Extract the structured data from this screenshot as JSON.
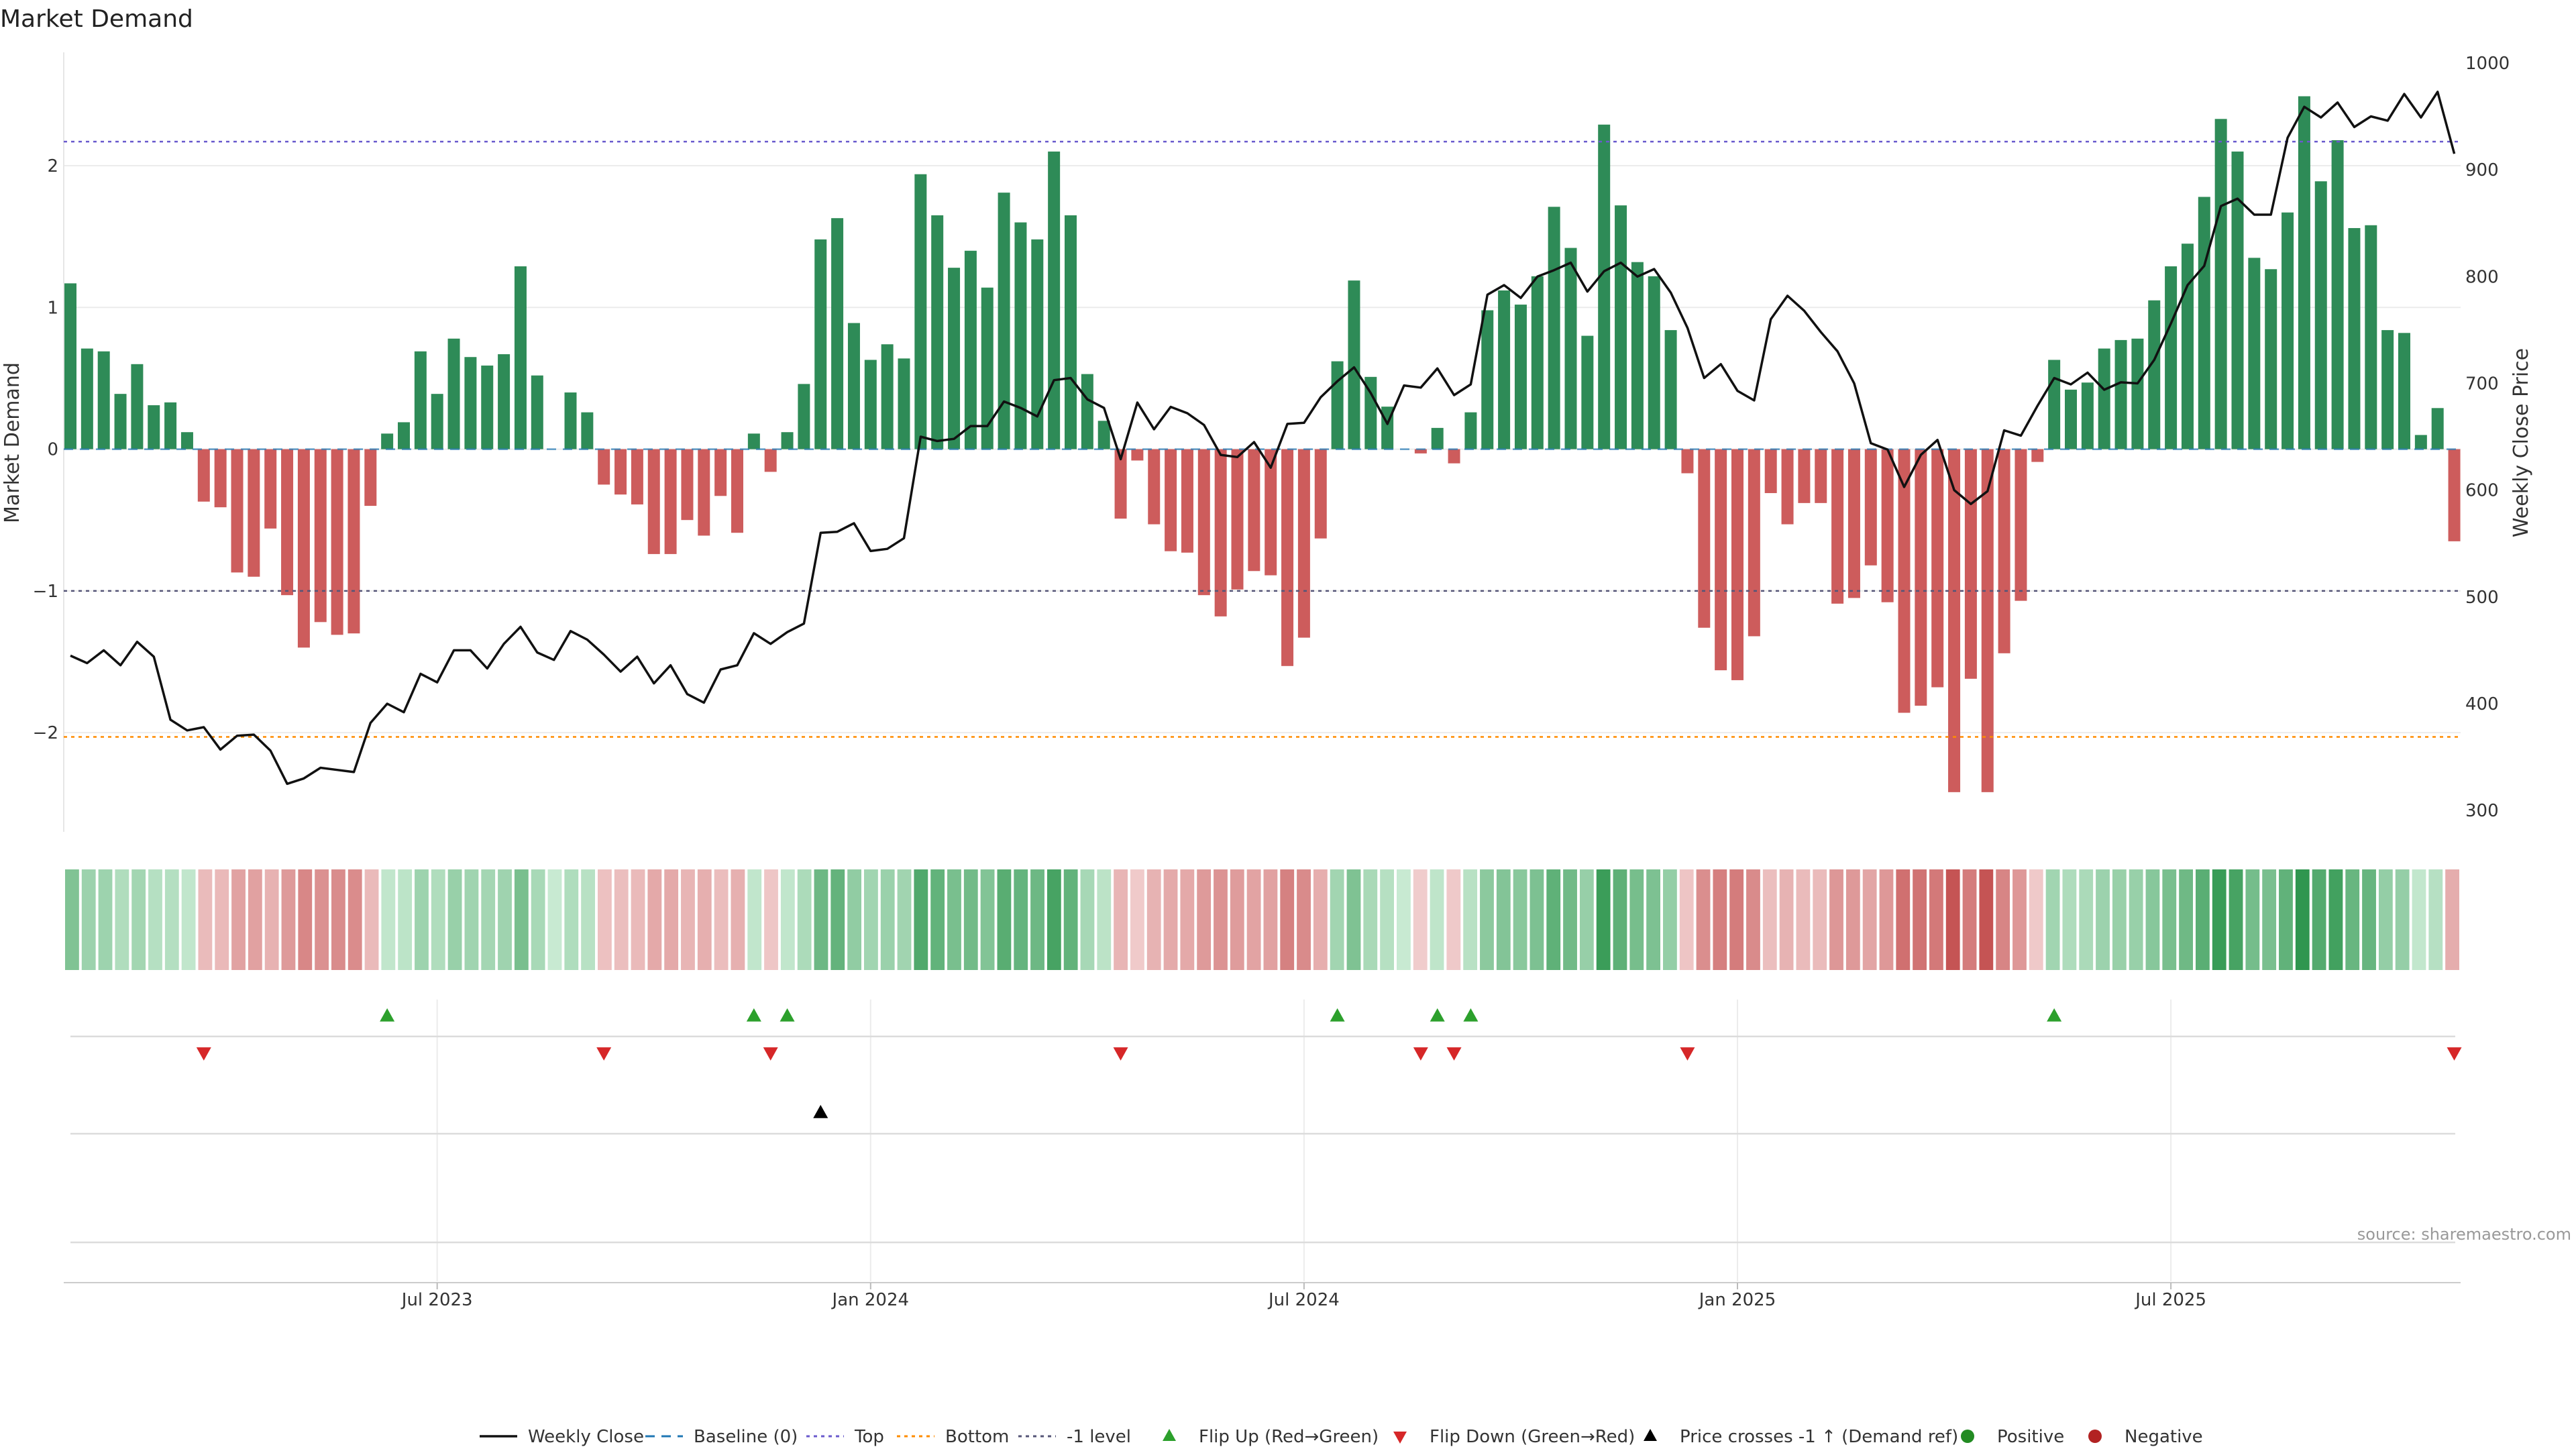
{
  "chart_data": {
    "type": "bar",
    "title": "Market Demand",
    "ylabel_left": "Market Demand",
    "ylabel_right": "Weekly Close Price",
    "ylim_left": [
      -2.7,
      2.8
    ],
    "ylim_right": [
      280,
      1010
    ],
    "yticks_left": [
      -2,
      -1,
      0,
      1,
      2
    ],
    "ytick_labels_left": [
      "−2",
      "−1",
      "0",
      "1",
      "2"
    ],
    "yticks_right": [
      300,
      400,
      500,
      600,
      700,
      800,
      900,
      1000
    ],
    "ytick_labels_right": [
      "300",
      "400",
      "500",
      "600",
      "700",
      "800",
      "900",
      "1000"
    ],
    "x_tick_weeks": [
      22,
      48,
      74,
      100,
      126
    ],
    "x_tick_labels": [
      "Jul 2023",
      "Jan 2024",
      "Jul 2024",
      "Jan 2025",
      "Jul 2025"
    ],
    "reference_lines": {
      "top": 2.17,
      "bottom": -2.03,
      "minus_one_level": -1.0,
      "baseline": 0
    },
    "demand": [
      1.17,
      0.71,
      0.69,
      0.39,
      0.6,
      0.31,
      0.33,
      0.12,
      -0.37,
      -0.41,
      -0.87,
      -0.9,
      -0.56,
      -1.03,
      -1.4,
      -1.22,
      -1.31,
      -1.3,
      -0.4,
      0.11,
      0.19,
      0.69,
      0.39,
      0.78,
      0.65,
      0.59,
      0.67,
      1.29,
      0.52,
      0.0,
      0.4,
      0.26,
      -0.25,
      -0.32,
      -0.39,
      -0.74,
      -0.74,
      -0.5,
      -0.61,
      -0.33,
      -0.59,
      0.11,
      -0.16,
      0.12,
      0.46,
      1.48,
      1.63,
      0.89,
      0.63,
      0.74,
      0.64,
      1.94,
      1.65,
      1.28,
      1.4,
      1.14,
      1.81,
      1.6,
      1.48,
      2.1,
      1.65,
      0.53,
      0.2,
      -0.49,
      -0.08,
      -0.53,
      -0.72,
      -0.73,
      -1.03,
      -1.18,
      -0.99,
      -0.86,
      -0.89,
      -1.53,
      -1.33,
      -0.63,
      0.62,
      1.19,
      0.51,
      0.3,
      0.0,
      -0.03,
      0.15,
      -0.1,
      0.26,
      0.98,
      1.12,
      1.02,
      1.22,
      1.71,
      1.42,
      0.8,
      2.29,
      1.72,
      1.32,
      1.22,
      0.84,
      -0.17,
      -1.26,
      -1.56,
      -1.63,
      -1.32,
      -0.31,
      -0.53,
      -0.38,
      -0.38,
      -1.09,
      -1.05,
      -0.82,
      -1.08,
      -1.86,
      -1.81,
      -1.68,
      -2.42,
      -1.62,
      -2.42,
      -1.44,
      -1.07,
      -0.09,
      0.63,
      0.42,
      0.47,
      0.71,
      0.77,
      0.78,
      1.05,
      1.29,
      1.45,
      1.78,
      2.33,
      2.1,
      1.35,
      1.27,
      1.67,
      2.49,
      1.89,
      2.18,
      1.56,
      1.58,
      0.84,
      0.82,
      0.1,
      0.29,
      -0.65
    ],
    "weekly_close": [
      445,
      438,
      450,
      436,
      458,
      444,
      385,
      375,
      378,
      357,
      370,
      371,
      356,
      325,
      330,
      340,
      338,
      336,
      382,
      400,
      392,
      428,
      420,
      450,
      450,
      433,
      456,
      472,
      448,
      441,
      468,
      460,
      446,
      430,
      444,
      419,
      436,
      409,
      401,
      432,
      436,
      466,
      456,
      467,
      475,
      560,
      561,
      569,
      543,
      545,
      555,
      650,
      646,
      648,
      660,
      660,
      683,
      677,
      669,
      703,
      705,
      685,
      677,
      629,
      682,
      657,
      678,
      672,
      661,
      633,
      631,
      645,
      621,
      662,
      663,
      687,
      702,
      715,
      691,
      662,
      698,
      696,
      714,
      689,
      699,
      783,
      792,
      780,
      800,
      806,
      813,
      786,
      805,
      813,
      800,
      807,
      785,
      752,
      705,
      718,
      693,
      684,
      760,
      782,
      768,
      748,
      730,
      700,
      644,
      638,
      603,
      633,
      647,
      600,
      587,
      599,
      656,
      651,
      679,
      705,
      699,
      710,
      694,
      701,
      700,
      722,
      756,
      792,
      810,
      866,
      873,
      858,
      858,
      930,
      959,
      949,
      963,
      940,
      950,
      946,
      971,
      949,
      973,
      915
    ],
    "flip_up_weeks": [
      19,
      41,
      43,
      76,
      82,
      84,
      119
    ],
    "flip_down_weeks": [
      8,
      32,
      42,
      63,
      81,
      83,
      97,
      143
    ],
    "price_cross_weeks": [
      45
    ],
    "source": "source: sharemaestro.com",
    "legend": [
      {
        "key": "weekly_close",
        "label": "Weekly Close"
      },
      {
        "key": "baseline",
        "label": "Baseline (0)"
      },
      {
        "key": "top",
        "label": "Top"
      },
      {
        "key": "bottom",
        "label": "Bottom"
      },
      {
        "key": "minus_one",
        "label": "-1 level"
      },
      {
        "key": "flip_up",
        "label": "Flip Up (Red→Green)"
      },
      {
        "key": "flip_down",
        "label": "Flip Down (Green→Red)"
      },
      {
        "key": "price_cross",
        "label": "Price crosses -1 ↑ (Demand ref)"
      },
      {
        "key": "positive",
        "label": "Positive"
      },
      {
        "key": "negative",
        "label": "Negative"
      }
    ]
  },
  "colors": {
    "positive": "#2e8b57",
    "negative": "#cd5c5c",
    "close_line": "#111111",
    "top_line": "#6a5acd",
    "bottom_line": "#ff8c00",
    "minus_one_line": "#555577",
    "baseline": "#1f77b4",
    "flip_up": "#2ca02c",
    "flip_down": "#d62728",
    "price_cross": "#000000",
    "legend_positive": "#228b22",
    "legend_negative": "#b22222"
  }
}
